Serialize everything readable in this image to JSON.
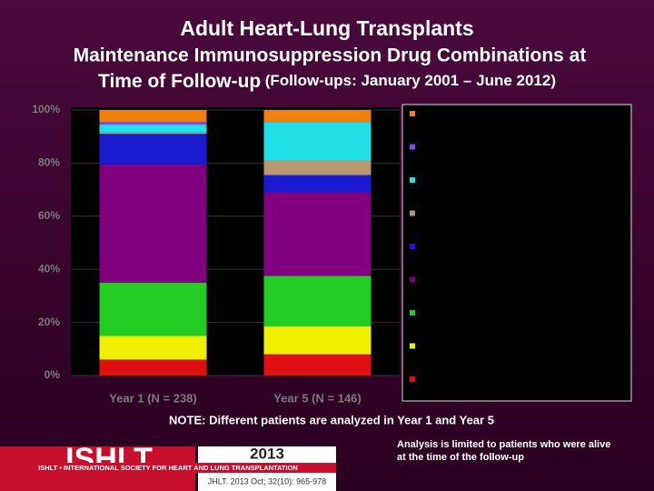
{
  "chart_data": {
    "type": "stacked_bar",
    "title": "Adult Heart-Lung Transplants",
    "subtitle": "Maintenance Immunosuppression Drug Combinations at",
    "subtitle_line2": "Time of Follow-up",
    "subtitle_period": "(Follow-ups: January 2001 – June 2012)",
    "categories": [
      "Year 1 (N = 238)",
      "Year 5 (N = 146)"
    ],
    "series": [
      {
        "color": "#e01010",
        "values": [
          6,
          8
        ]
      },
      {
        "color": "#f0f000",
        "values": [
          9,
          10.5
        ]
      },
      {
        "color": "#22cc22",
        "values": [
          20,
          19
        ]
      },
      {
        "color": "#800080",
        "values": [
          44.5,
          31.5
        ]
      },
      {
        "color": "#1a1ad0",
        "values": [
          11.5,
          6.5
        ]
      },
      {
        "color": "#b89870",
        "values": [
          0.5,
          5.5
        ]
      },
      {
        "color": "#22e0e8",
        "values": [
          3,
          14.5
        ]
      },
      {
        "color": "#8844ee",
        "values": [
          1,
          0
        ]
      },
      {
        "color": "#f08010",
        "values": [
          4.5,
          4.5
        ]
      }
    ],
    "ylim": [
      0,
      100
    ],
    "yticks": [
      {
        "value": 0,
        "label": "0%"
      },
      {
        "value": 20,
        "label": "20%"
      },
      {
        "value": 40,
        "label": "40%"
      },
      {
        "value": 60,
        "label": "60%"
      },
      {
        "value": 80,
        "label": "80%"
      },
      {
        "value": 100,
        "label": "100%"
      }
    ],
    "grid": true,
    "note": "NOTE: Different patients are analyzed in Year 1 and Year 5",
    "footnote": "Analysis is limited to patients who were alive at the time of the follow-up"
  },
  "footer": {
    "logo": "ISHLT",
    "society": "ISHLT • INTERNATIONAL SOCIETY FOR HEART AND LUNG TRANSPLANTATION",
    "year": "2013",
    "citation": "JHLT. 2013 Oct; 32(10): 965-978"
  }
}
